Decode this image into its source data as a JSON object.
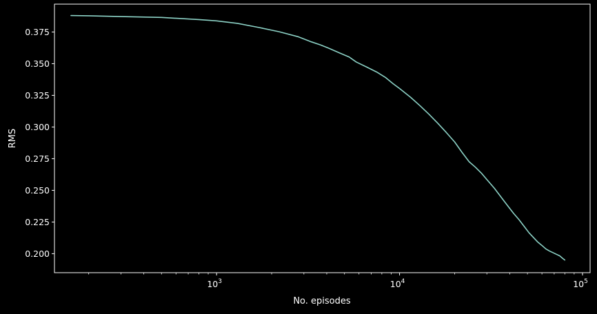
{
  "chart_data": {
    "type": "line",
    "title": "",
    "xlabel": "No. episodes",
    "ylabel": "RMS",
    "x_scale": "log",
    "xlim": [
      130,
      110000
    ],
    "ylim": [
      0.185,
      0.397
    ],
    "grid": false,
    "x_ticks": [
      {
        "value": 1000,
        "base": "10",
        "exp": "3"
      },
      {
        "value": 10000,
        "base": "10",
        "exp": "4"
      },
      {
        "value": 100000,
        "base": "10",
        "exp": "5"
      }
    ],
    "y_ticks": [
      {
        "value": 0.2,
        "label": "0.200"
      },
      {
        "value": 0.225,
        "label": "0.225"
      },
      {
        "value": 0.25,
        "label": "0.250"
      },
      {
        "value": 0.275,
        "label": "0.275"
      },
      {
        "value": 0.3,
        "label": "0.300"
      },
      {
        "value": 0.325,
        "label": "0.325"
      },
      {
        "value": 0.35,
        "label": "0.350"
      },
      {
        "value": 0.375,
        "label": "0.375"
      }
    ],
    "series": [
      {
        "color": "#8dd3c7",
        "x": [
          160,
          200,
          300,
          500,
          800,
          1000,
          1300,
          1700,
          2200,
          2800,
          3300,
          3700,
          4100,
          4700,
          5300,
          5800,
          6600,
          7500,
          8400,
          9200,
          10000,
          11500,
          13000,
          14500,
          16000,
          18000,
          20000,
          22000,
          24000,
          26000,
          28000,
          30000,
          33000,
          36000,
          39000,
          42000,
          45000,
          48000,
          51000,
          54000,
          57000,
          60000,
          63000,
          66000,
          69000,
          72000,
          75000,
          78000,
          80000
        ],
        "y": [
          0.388,
          0.3878,
          0.3872,
          0.3865,
          0.3848,
          0.3838,
          0.3818,
          0.3786,
          0.3752,
          0.3712,
          0.3672,
          0.3648,
          0.3622,
          0.3585,
          0.3553,
          0.3513,
          0.3474,
          0.3434,
          0.339,
          0.3343,
          0.3304,
          0.3234,
          0.3165,
          0.31,
          0.3037,
          0.2957,
          0.2882,
          0.2798,
          0.2726,
          0.2682,
          0.2636,
          0.2585,
          0.2516,
          0.2444,
          0.2378,
          0.2318,
          0.2268,
          0.2215,
          0.2165,
          0.2127,
          0.2091,
          0.2065,
          0.2038,
          0.2021,
          0.2008,
          0.1995,
          0.1983,
          0.1962,
          0.195
        ]
      }
    ]
  }
}
